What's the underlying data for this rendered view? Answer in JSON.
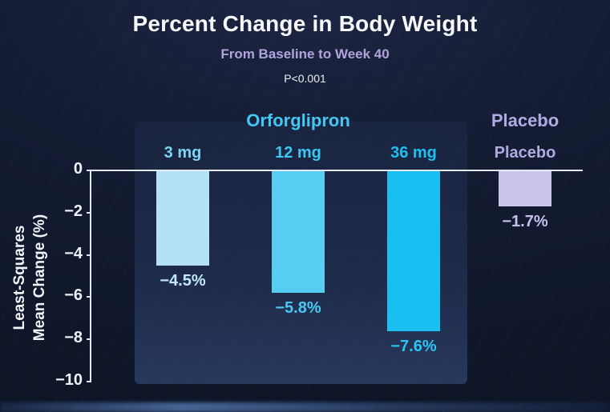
{
  "header": {
    "title": "Percent Change in Body Weight",
    "subtitle": "From Baseline to Week 40",
    "p_value": "P<0.001"
  },
  "chart_data": {
    "type": "bar",
    "title": "Percent Change in Body Weight",
    "subtitle": "From Baseline to Week 40",
    "annotation": "P<0.001",
    "ylabel": "Least-Squares Mean Change (%)",
    "ylabel_line1": "Least-Squares",
    "ylabel_line2": "Mean Change (%)",
    "ylim": [
      -10,
      0
    ],
    "yticks": [
      "0",
      "−2",
      "−4",
      "−6",
      "−8",
      "−10"
    ],
    "ytick_values": [
      0,
      -2,
      -4,
      -6,
      -8,
      -10
    ],
    "grid": false,
    "legend_position": "none",
    "group_labels": [
      {
        "label": "Orforglipron",
        "color": "#45c7f3"
      },
      {
        "label": "Placebo",
        "color": "#b2abe3"
      }
    ],
    "categories": [
      "3 mg",
      "12 mg",
      "36 mg",
      "Placebo"
    ],
    "values": [
      -4.5,
      -5.8,
      -7.6,
      -1.7
    ],
    "bars": [
      {
        "category": "3 mg",
        "group": "Orforglipron",
        "value": -4.5,
        "value_label": "−4.5%",
        "bar_color": "#b3e1f8",
        "category_color": "#7dd4f6",
        "value_color": "#c3e8fb"
      },
      {
        "category": "12 mg",
        "group": "Orforglipron",
        "value": -5.8,
        "value_label": "−5.8%",
        "bar_color": "#57cdf1",
        "category_color": "#3cc6f2",
        "value_color": "#49c9f2"
      },
      {
        "category": "36 mg",
        "group": "Orforglipron",
        "value": -7.6,
        "value_label": "−7.6%",
        "bar_color": "#18bff0",
        "category_color": "#1fc0f1",
        "value_color": "#2cc5f3"
      },
      {
        "category": "Placebo",
        "group": "Placebo",
        "value": -1.7,
        "value_label": "−1.7%",
        "bar_color": "#c9c5ec",
        "category_color": "#b2abe3",
        "value_color": "#c6c1ec"
      }
    ]
  }
}
